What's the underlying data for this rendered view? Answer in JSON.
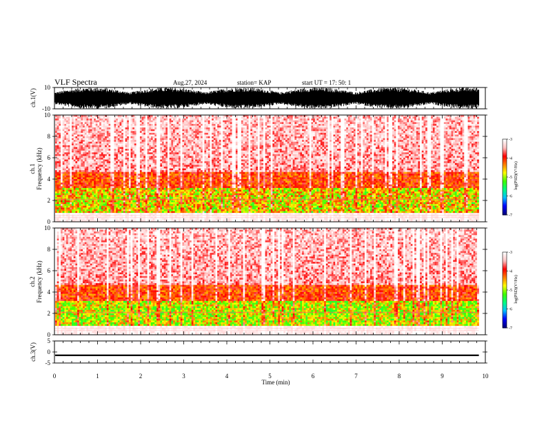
{
  "header": {
    "title": "VLF Spectra",
    "date": "Aug.27, 2024",
    "station": "station= KAP",
    "start": "start  UT  =   17: 50: 1"
  },
  "chart_data": [
    {
      "type": "line",
      "panel": "ch1-waveform",
      "ylabel": "ch.1(V)",
      "ylim": [
        -10,
        10
      ],
      "yticks": [
        "10",
        "-10"
      ],
      "xlim": [
        0,
        10
      ],
      "description_values": {
        "approx_min": -10,
        "approx_max": 10
      }
    },
    {
      "type": "heatmap",
      "panel": "ch1-spectrogram",
      "ylabel_line1": "ch.1",
      "ylabel_line2": "Frequency (kHz)",
      "ylim": [
        0,
        10
      ],
      "yticks": [
        "0",
        "2",
        "4",
        "6",
        "8",
        "10"
      ],
      "xlim": [
        0,
        9.85
      ],
      "colorbar": {
        "label": "log(PSD)(V²/Hz)",
        "ticks": [
          "-3",
          "-4",
          "-5",
          "-6",
          "-7"
        ],
        "range": [
          -7,
          -3
        ]
      }
    },
    {
      "type": "heatmap",
      "panel": "ch2-spectrogram",
      "ylabel_line1": "ch.2",
      "ylabel_line2": "Frequency (kHz)",
      "ylim": [
        0,
        10
      ],
      "yticks": [
        "0",
        "2",
        "4",
        "6",
        "8",
        "10"
      ],
      "xlim": [
        0,
        9.85
      ],
      "colorbar": {
        "label": "log(PSD)(V²/Hz)",
        "ticks": [
          "-3",
          "-4",
          "-5",
          "-6",
          "-7"
        ],
        "range": [
          -7,
          -3
        ]
      }
    },
    {
      "type": "line",
      "panel": "ch3-waveform",
      "ylabel": "ch.3(V)",
      "ylim": [
        -5,
        5
      ],
      "yticks": [
        "5",
        "0",
        "-5"
      ],
      "xlim": [
        0,
        10
      ],
      "description_values": {
        "approx_level": -1.5
      }
    }
  ],
  "xaxis": {
    "label": "Time  (min)",
    "ticks": [
      "0",
      "1",
      "2",
      "3",
      "4",
      "5",
      "6",
      "7",
      "8",
      "9",
      "10"
    ],
    "range": [
      0,
      10
    ]
  },
  "colors": {
    "colormap": [
      "#000080",
      "#0000ff",
      "#00c0ff",
      "#00ff80",
      "#40ff00",
      "#ffff00",
      "#ff8000",
      "#ff0000",
      "#ffc0c0",
      "#ffffff"
    ]
  }
}
